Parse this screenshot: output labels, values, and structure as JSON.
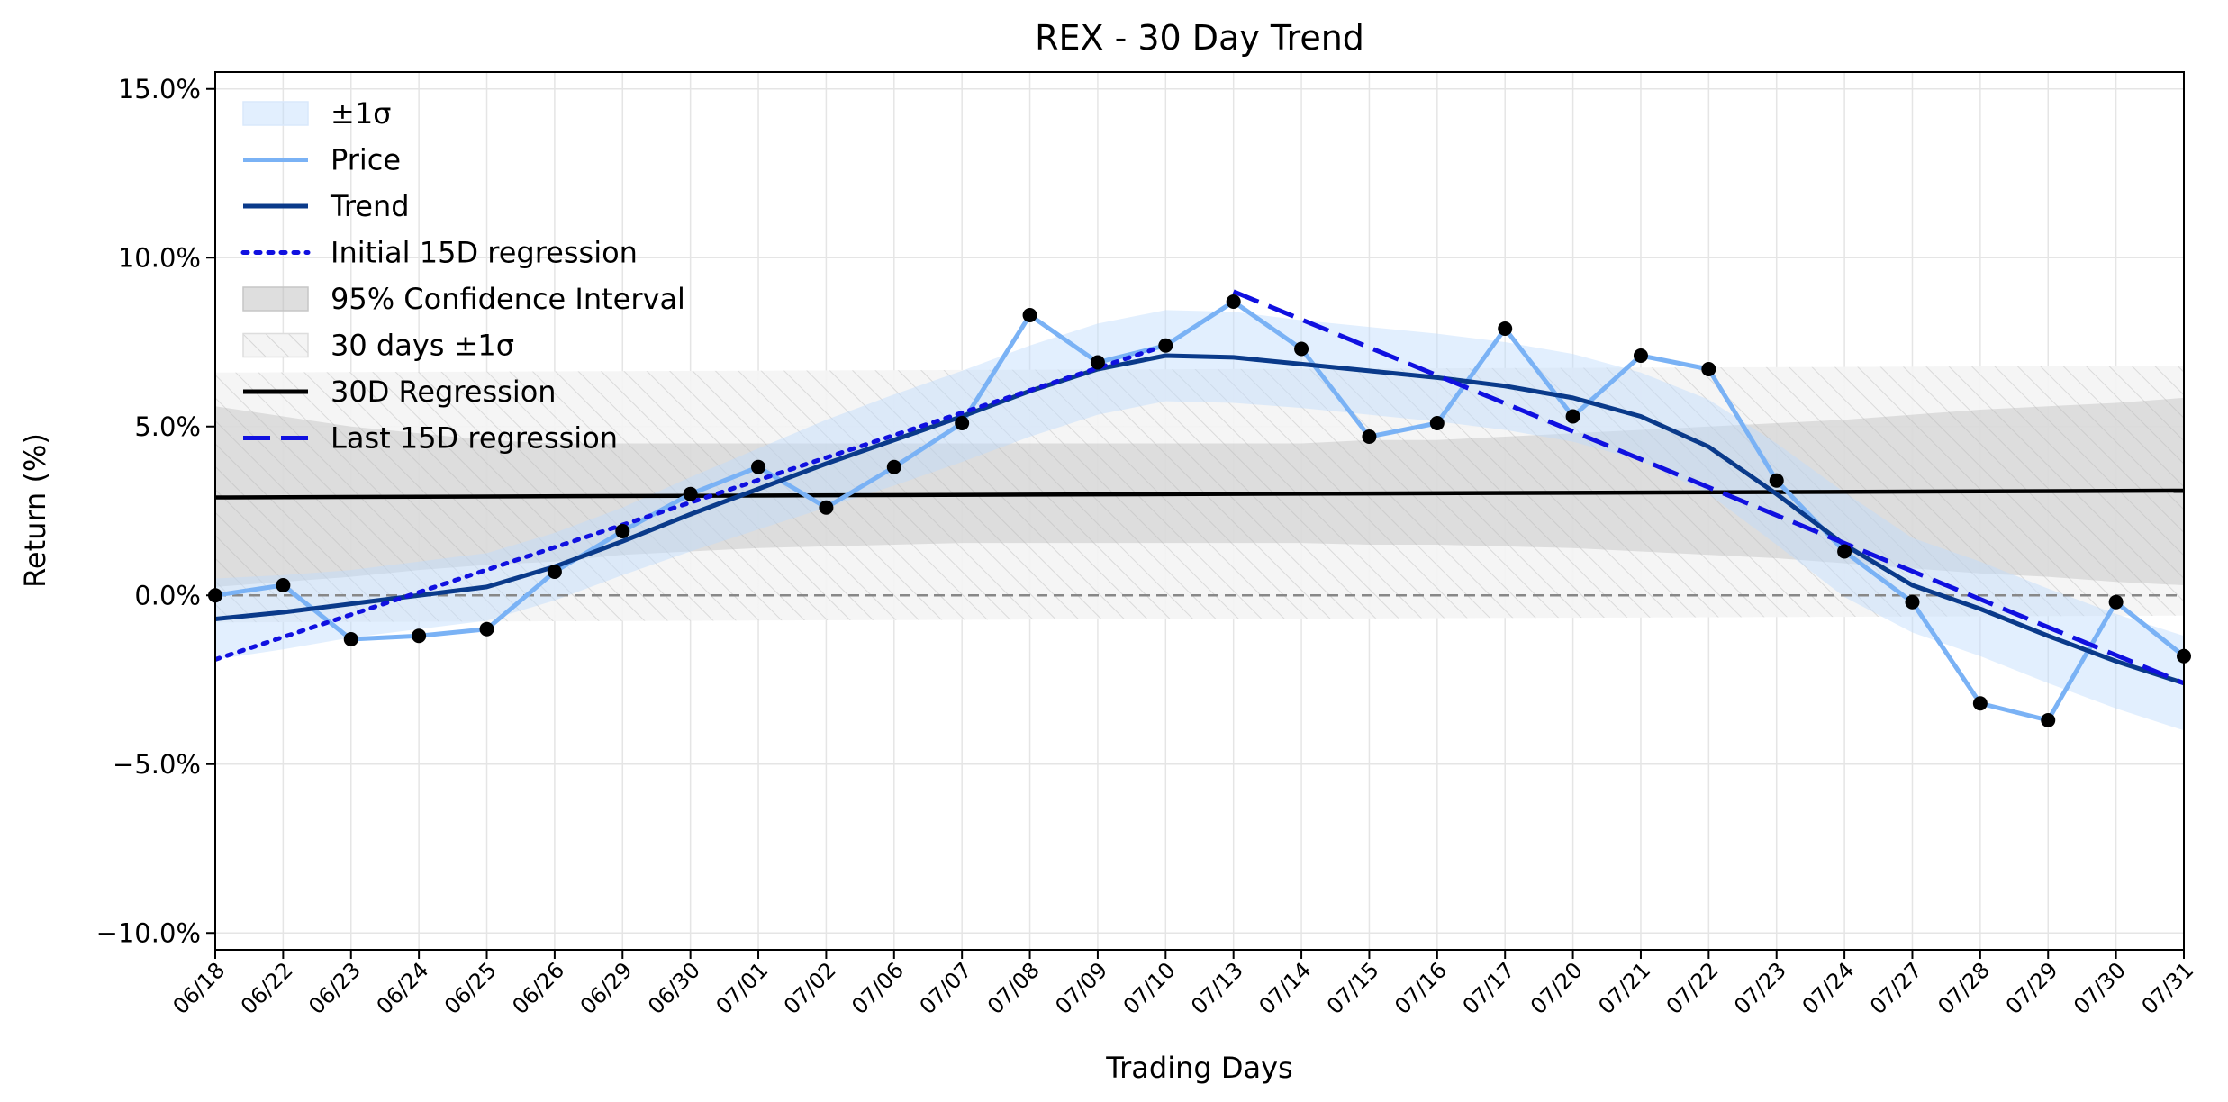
{
  "chart_data": {
    "type": "line",
    "title": "REX - 30 Day Trend",
    "xlabel": "Trading Days",
    "ylabel": "Return (%)",
    "ylim": [
      -10.5,
      15.5
    ],
    "yticks": [
      "15.0%",
      "10.0%",
      "5.0%",
      "0.0%",
      "−5.0%",
      "−10.0%"
    ],
    "ytick_values": [
      15,
      10,
      5,
      0,
      -5,
      -10
    ],
    "grid": true,
    "legend_position": "top-left",
    "categories": [
      "06/18",
      "06/22",
      "06/23",
      "06/24",
      "06/25",
      "06/26",
      "06/29",
      "06/30",
      "07/01",
      "07/02",
      "07/06",
      "07/07",
      "07/08",
      "07/09",
      "07/10",
      "07/13",
      "07/14",
      "07/15",
      "07/16",
      "07/17",
      "07/20",
      "07/21",
      "07/22",
      "07/23",
      "07/24",
      "07/27",
      "07/28",
      "07/29",
      "07/30",
      "07/31"
    ],
    "series": [
      {
        "name": "Price",
        "color": "#7ab2f5",
        "style": "solid",
        "values": [
          0.0,
          0.3,
          -1.3,
          -1.2,
          -1.0,
          0.7,
          1.9,
          3.0,
          3.8,
          2.6,
          3.8,
          5.1,
          8.3,
          6.9,
          7.4,
          8.7,
          7.3,
          4.7,
          5.1,
          7.9,
          5.3,
          7.1,
          6.7,
          3.4,
          1.3,
          -0.2,
          -3.2,
          -3.7,
          -0.2,
          -1.8
        ]
      },
      {
        "name": "Trend",
        "color": "#0a3a8a",
        "style": "solid",
        "values": [
          -0.7,
          -0.5,
          -0.25,
          0.0,
          0.25,
          0.85,
          1.6,
          2.4,
          3.15,
          3.9,
          4.6,
          5.3,
          6.05,
          6.7,
          7.1,
          7.05,
          6.85,
          6.65,
          6.45,
          6.2,
          5.85,
          5.3,
          4.4,
          3.0,
          1.5,
          0.3,
          -0.4,
          -1.2,
          -1.95,
          -2.6
        ]
      },
      {
        "name": "Initial 15D regression",
        "color": "#1010e0",
        "style": "dotted",
        "x_range": [
          "06/18",
          "07/10"
        ],
        "y_range": [
          -1.9,
          7.4
        ]
      },
      {
        "name": "30D Regression",
        "color": "#000000",
        "style": "solid",
        "x_range": [
          "06/18",
          "07/31"
        ],
        "y_range": [
          2.9,
          3.1
        ]
      },
      {
        "name": "Last 15D regression",
        "color": "#1010e0",
        "style": "dashed",
        "x_range": [
          "07/13",
          "07/31"
        ],
        "y_range": [
          9.0,
          -2.6
        ]
      }
    ],
    "bands": [
      {
        "name": "±1σ",
        "color": "#dbe9fb",
        "center": "Trend",
        "halfwidth": [
          1.2,
          1.1,
          1.0,
          1.0,
          1.0,
          1.0,
          1.0,
          1.1,
          1.2,
          1.3,
          1.35,
          1.35,
          1.35,
          1.35,
          1.35,
          1.35,
          1.3,
          1.3,
          1.3,
          1.3,
          1.3,
          1.3,
          1.4,
          1.5,
          1.55,
          1.4,
          1.4,
          1.4,
          1.4,
          1.4
        ]
      },
      {
        "name": "95% Confidence Interval",
        "color": "#b5b5b5",
        "upper": [
          5.6,
          5.3,
          5.0,
          4.8,
          4.6,
          4.5,
          4.5,
          4.5,
          4.5,
          4.5,
          4.5,
          4.5,
          4.5,
          4.5,
          4.5,
          4.5,
          4.5,
          4.6,
          4.6,
          4.7,
          4.8,
          4.9,
          5.0,
          5.1,
          5.2,
          5.35,
          5.5,
          5.6,
          5.7,
          5.85
        ],
        "lower": [
          0.25,
          0.4,
          0.55,
          0.75,
          0.9,
          1.0,
          1.2,
          1.3,
          1.4,
          1.45,
          1.5,
          1.55,
          1.55,
          1.55,
          1.55,
          1.55,
          1.55,
          1.5,
          1.5,
          1.45,
          1.4,
          1.3,
          1.2,
          1.1,
          0.95,
          0.8,
          0.65,
          0.55,
          0.4,
          0.3
        ]
      },
      {
        "name": "30 days ±1σ",
        "color": "#cccccc",
        "hatched": true,
        "x_range": [
          "06/18",
          "07/31"
        ],
        "upper": [
          6.6,
          6.8
        ],
        "lower": [
          -0.8,
          -0.6
        ]
      }
    ],
    "reference_line": {
      "y": 0,
      "color": "#888888",
      "style": "dashed"
    },
    "legend": [
      "±1σ",
      "Price",
      "Trend",
      "Initial 15D regression",
      "95% Confidence Interval",
      "30 days ±1σ",
      "30D Regression",
      "Last 15D regression"
    ]
  }
}
